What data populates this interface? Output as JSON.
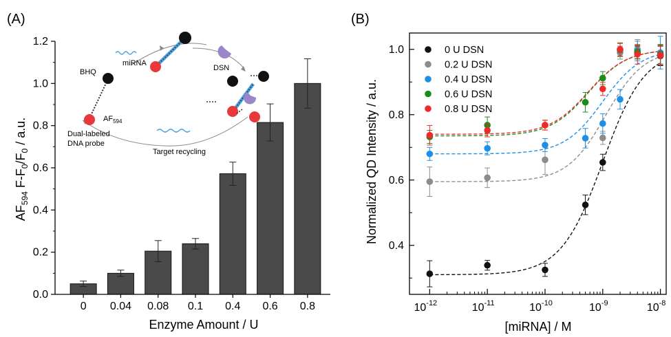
{
  "chart_data": [
    {
      "panel_label": "(A)",
      "type": "bar",
      "categories": [
        "0",
        "0.04",
        "0.08",
        "0.1",
        "0.4",
        "0.6",
        "0.8"
      ],
      "values": [
        0.05,
        0.1,
        0.205,
        0.24,
        0.572,
        0.815,
        1.0
      ],
      "errors": [
        0.013,
        0.015,
        0.05,
        0.025,
        0.055,
        0.088,
        0.117
      ],
      "xlabel": "Enzyme Amount / U",
      "ylabel": {
        "main": "AF",
        "sub1": "594",
        "mid": " F-F",
        "sub2": "0",
        "mid2": "/F",
        "sub3": "0",
        "end": " / a.u."
      },
      "ylim": [
        0,
        1.2
      ],
      "yticks": [
        "0.0",
        "0.2",
        "0.4",
        "0.6",
        "0.8",
        "1.0",
        "1.2"
      ],
      "bar_color": "#4a4a4a",
      "inset_scheme": {
        "labels": {
          "bhq": "BHQ",
          "mirna": "miRNA",
          "dsn": "DSN",
          "af": "AF",
          "af_sub": "594",
          "probe_line1": "Dual-labeled",
          "probe_line2": "DNA probe",
          "recycling": "Target recycling"
        },
        "colors": {
          "quencher": "#111111",
          "fluorophore": "#e8383b",
          "mirna": "#4aa3df",
          "dsn": "#9a86c8"
        }
      }
    },
    {
      "panel_label": "(B)",
      "type": "scatter",
      "xscale": "log",
      "x": [
        1e-12,
        1e-11,
        1e-10,
        5e-10,
        1e-09,
        2e-09,
        4e-09,
        1e-08
      ],
      "xticks": [
        {
          "base": "10",
          "exp": "-12"
        },
        {
          "base": "10",
          "exp": "-11"
        },
        {
          "base": "10",
          "exp": "-10"
        },
        {
          "base": "10",
          "exp": "-9"
        },
        {
          "base": "10",
          "exp": "-8"
        }
      ],
      "xlabel": "[miRNA] / M",
      "ylabel": "Normalized QD Intensity / a.u.",
      "ylim": [
        0.25,
        1.05
      ],
      "yticks": [
        "0.4",
        "0.6",
        "0.8",
        "1.0"
      ],
      "legend_position": "top-left",
      "series": [
        {
          "name": "0 U DSN",
          "color": "#111111",
          "y": [
            0.313,
            0.339,
            0.325,
            0.524,
            0.654,
            null,
            0.99,
            0.98
          ],
          "err": [
            0.04,
            0.015,
            0.02,
            0.03,
            0.025,
            0,
            0.02,
            0.03
          ],
          "fit": {
            "bottom": 0.31,
            "top": 1.0,
            "log_ec50": -9.0,
            "slope": 1.2
          }
        },
        {
          "name": "0.2 U DSN",
          "color": "#8c8c8c",
          "y": [
            0.595,
            0.607,
            0.662,
            null,
            0.729,
            0.99,
            1.0,
            0.985
          ],
          "err": [
            0.045,
            0.03,
            0.045,
            0,
            0.02,
            0.02,
            0.03,
            0.03
          ],
          "fit": {
            "bottom": 0.595,
            "top": 1.0,
            "log_ec50": -8.95,
            "slope": 1.3
          }
        },
        {
          "name": "0.4 U DSN",
          "color": "#1e8fe6",
          "y": [
            0.68,
            0.697,
            0.707,
            0.728,
            0.773,
            0.847,
            0.995,
            0.99
          ],
          "err": [
            0.02,
            0.02,
            0.02,
            0.03,
            0.03,
            0.03,
            0.03,
            0.05
          ],
          "fit": {
            "bottom": 0.68,
            "top": 1.0,
            "log_ec50": -9.0,
            "slope": 1.3
          }
        },
        {
          "name": "0.6 U DSN",
          "color": "#1a8c1a",
          "y": [
            0.732,
            0.768,
            0.768,
            0.838,
            0.912,
            0.998,
            0.992,
            0.985
          ],
          "err": [
            0.02,
            0.025,
            0.015,
            0.03,
            0.02,
            0.02,
            0.02,
            0.03
          ],
          "fit": {
            "bottom": 0.735,
            "top": 1.0,
            "log_ec50": -9.25,
            "slope": 1.3
          }
        },
        {
          "name": "0.8 U DSN",
          "color": "#ef2a2a",
          "y": [
            0.737,
            0.752,
            0.768,
            null,
            0.879,
            1.0,
            0.985,
            0.982
          ],
          "err": [
            0.03,
            0.02,
            0.015,
            0,
            0.02,
            0.02,
            0.03,
            0.03
          ],
          "fit": {
            "bottom": 0.74,
            "top": 1.0,
            "log_ec50": -9.25,
            "slope": 1.3
          }
        }
      ]
    }
  ]
}
